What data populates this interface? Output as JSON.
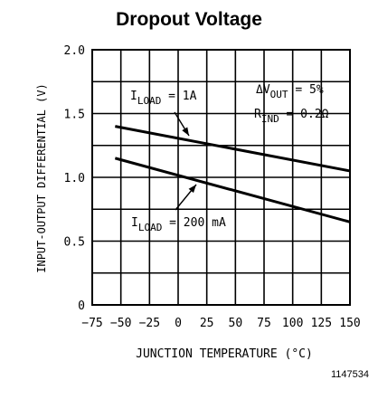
{
  "chart_data": {
    "type": "line",
    "title": "Dropout Voltage",
    "xlabel": "JUNCTION TEMPERATURE (°C)",
    "ylabel": "INPUT-OUTPUT DIFFERENTIAL (V)",
    "xlim": [
      -75,
      150
    ],
    "ylim": [
      0,
      2.0
    ],
    "x_ticks": [
      "−75",
      "−50",
      "−25",
      "0",
      "25",
      "50",
      "75",
      "100",
      "125",
      "150"
    ],
    "y_ticks": [
      "0",
      "0.5",
      "1.0",
      "1.5",
      "2.0"
    ],
    "grid": true,
    "series": [
      {
        "name": "ILOAD = 1A",
        "x": [
          -55,
          150
        ],
        "y": [
          1.4,
          1.05
        ]
      },
      {
        "name": "ILOAD = 200 mA",
        "x": [
          -55,
          150
        ],
        "y": [
          1.15,
          0.65
        ]
      }
    ],
    "annotations": {
      "load_1a": {
        "main": "I",
        "sub": "LOAD",
        "rest": " = 1A"
      },
      "load_200ma": {
        "main": "I",
        "sub": "LOAD",
        "rest": " = 200 mA"
      },
      "delta_vout": {
        "main": "ΔV",
        "sub": "OUT",
        "rest": " = 5%"
      },
      "r_ind": {
        "main": "R",
        "sub": "IND",
        "rest": " = 0.2Ω"
      }
    }
  },
  "figure_id": "1147534"
}
